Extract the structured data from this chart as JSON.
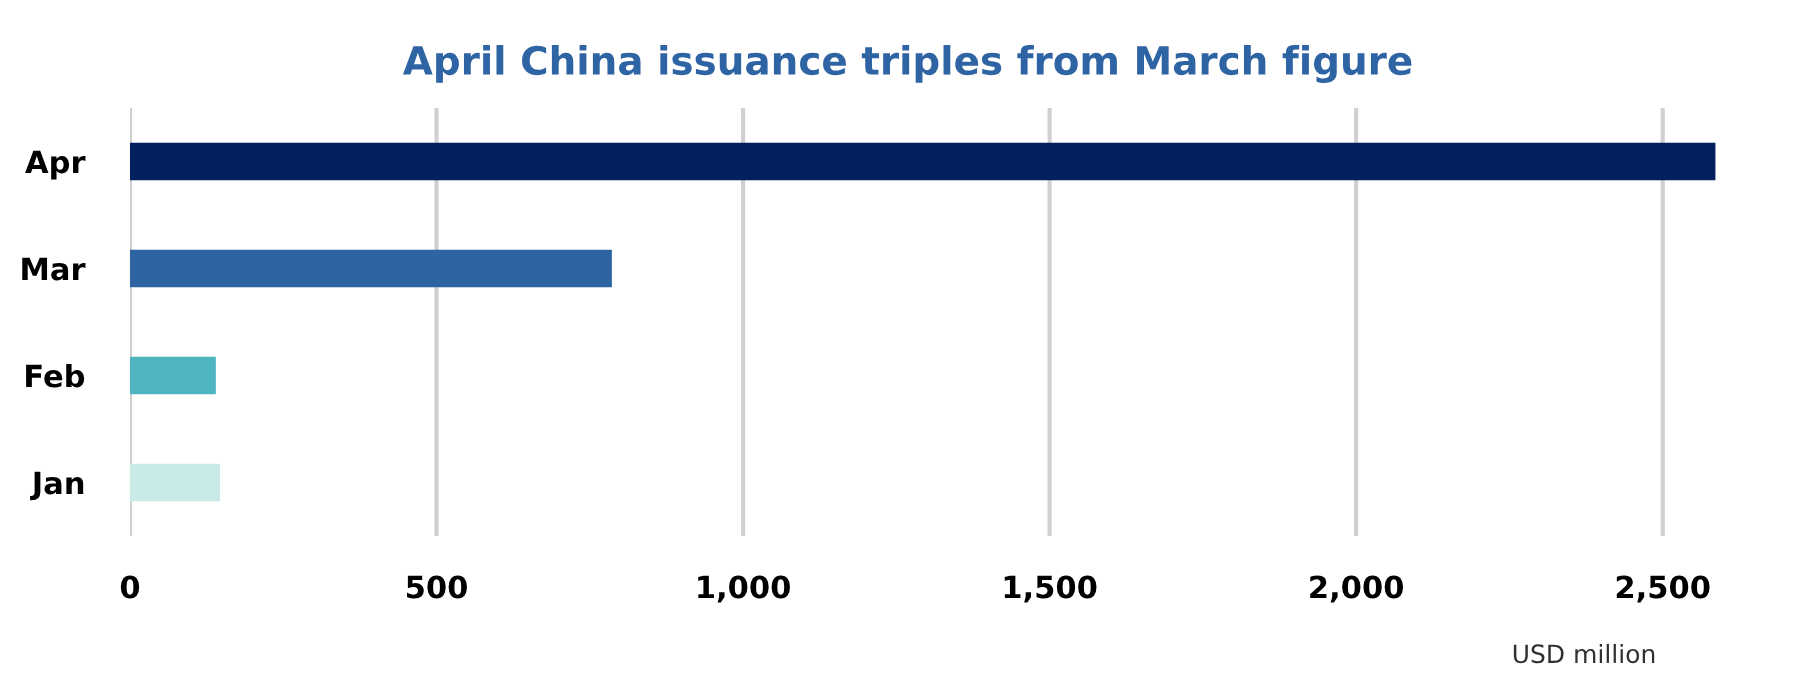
{
  "chart_data": {
    "type": "bar",
    "orientation": "horizontal",
    "title": "April China issuance triples from March figure",
    "xlabel": "USD million",
    "categories": [
      "Apr",
      "Mar",
      "Feb",
      "Jan"
    ],
    "values": [
      2586,
      786,
      140,
      147
    ],
    "colors": [
      "#02205f",
      "#2e64a4",
      "#4eb4bf",
      "#c8e9e6"
    ],
    "xlim": [
      0,
      2600
    ],
    "xticks": [
      0,
      {
        "value": 500,
        "label": "500"
      },
      {
        "value": 1000,
        "label": "1,000"
      },
      {
        "value": 1500,
        "label": "1,500"
      },
      {
        "value": 2000,
        "label": "2,000"
      },
      {
        "value": 2500,
        "label": "2,500"
      }
    ],
    "grid": "x",
    "legend": false
  }
}
